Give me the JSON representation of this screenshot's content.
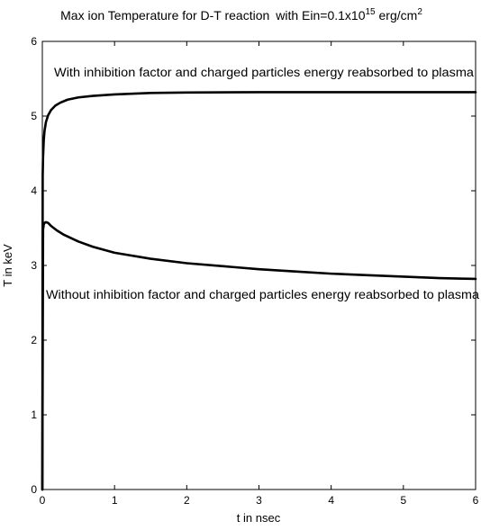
{
  "chart_data": {
    "type": "line",
    "title": {
      "main": "Max ion Temperature for D-T reaction",
      "cond_prefix": "with Ein=0.1x10",
      "cond_exp": "15",
      "cond_unit": " erg/cm",
      "cond_unit_exp": "2"
    },
    "xlabel": "t in nsec",
    "ylabel": "T in keV",
    "xlim": [
      0,
      6
    ],
    "ylim": [
      0,
      6
    ],
    "xticks": [
      "0",
      "1",
      "2",
      "3",
      "4",
      "5",
      "6"
    ],
    "yticks": [
      "0",
      "1",
      "2",
      "3",
      "4",
      "5",
      "6"
    ],
    "grid": false,
    "series": [
      {
        "name": "With inhibition factor and charged particles energy reabsorbed to plasma",
        "x": [
          0,
          0.005,
          0.01,
          0.02,
          0.03,
          0.05,
          0.08,
          0.12,
          0.18,
          0.25,
          0.35,
          0.5,
          0.7,
          1.0,
          1.5,
          2.0,
          3.0,
          4.0,
          5.0,
          6.0
        ],
        "y": [
          0,
          4.2,
          4.45,
          4.68,
          4.8,
          4.92,
          5.01,
          5.08,
          5.14,
          5.18,
          5.22,
          5.25,
          5.27,
          5.29,
          5.31,
          5.315,
          5.32,
          5.32,
          5.32,
          5.32
        ]
      },
      {
        "name": "Without inhibition factor and charged particles energy reabsorbed to plasma",
        "x": [
          0,
          0.01,
          0.02,
          0.03,
          0.05,
          0.08,
          0.12,
          0.2,
          0.3,
          0.5,
          0.7,
          1.0,
          1.5,
          2.0,
          2.5,
          3.0,
          3.5,
          4.0,
          4.5,
          5.0,
          5.5,
          6.0
        ],
        "y": [
          0,
          3.48,
          3.55,
          3.57,
          3.58,
          3.57,
          3.53,
          3.47,
          3.41,
          3.32,
          3.25,
          3.17,
          3.09,
          3.03,
          2.99,
          2.95,
          2.92,
          2.89,
          2.87,
          2.85,
          2.83,
          2.82
        ]
      }
    ]
  }
}
